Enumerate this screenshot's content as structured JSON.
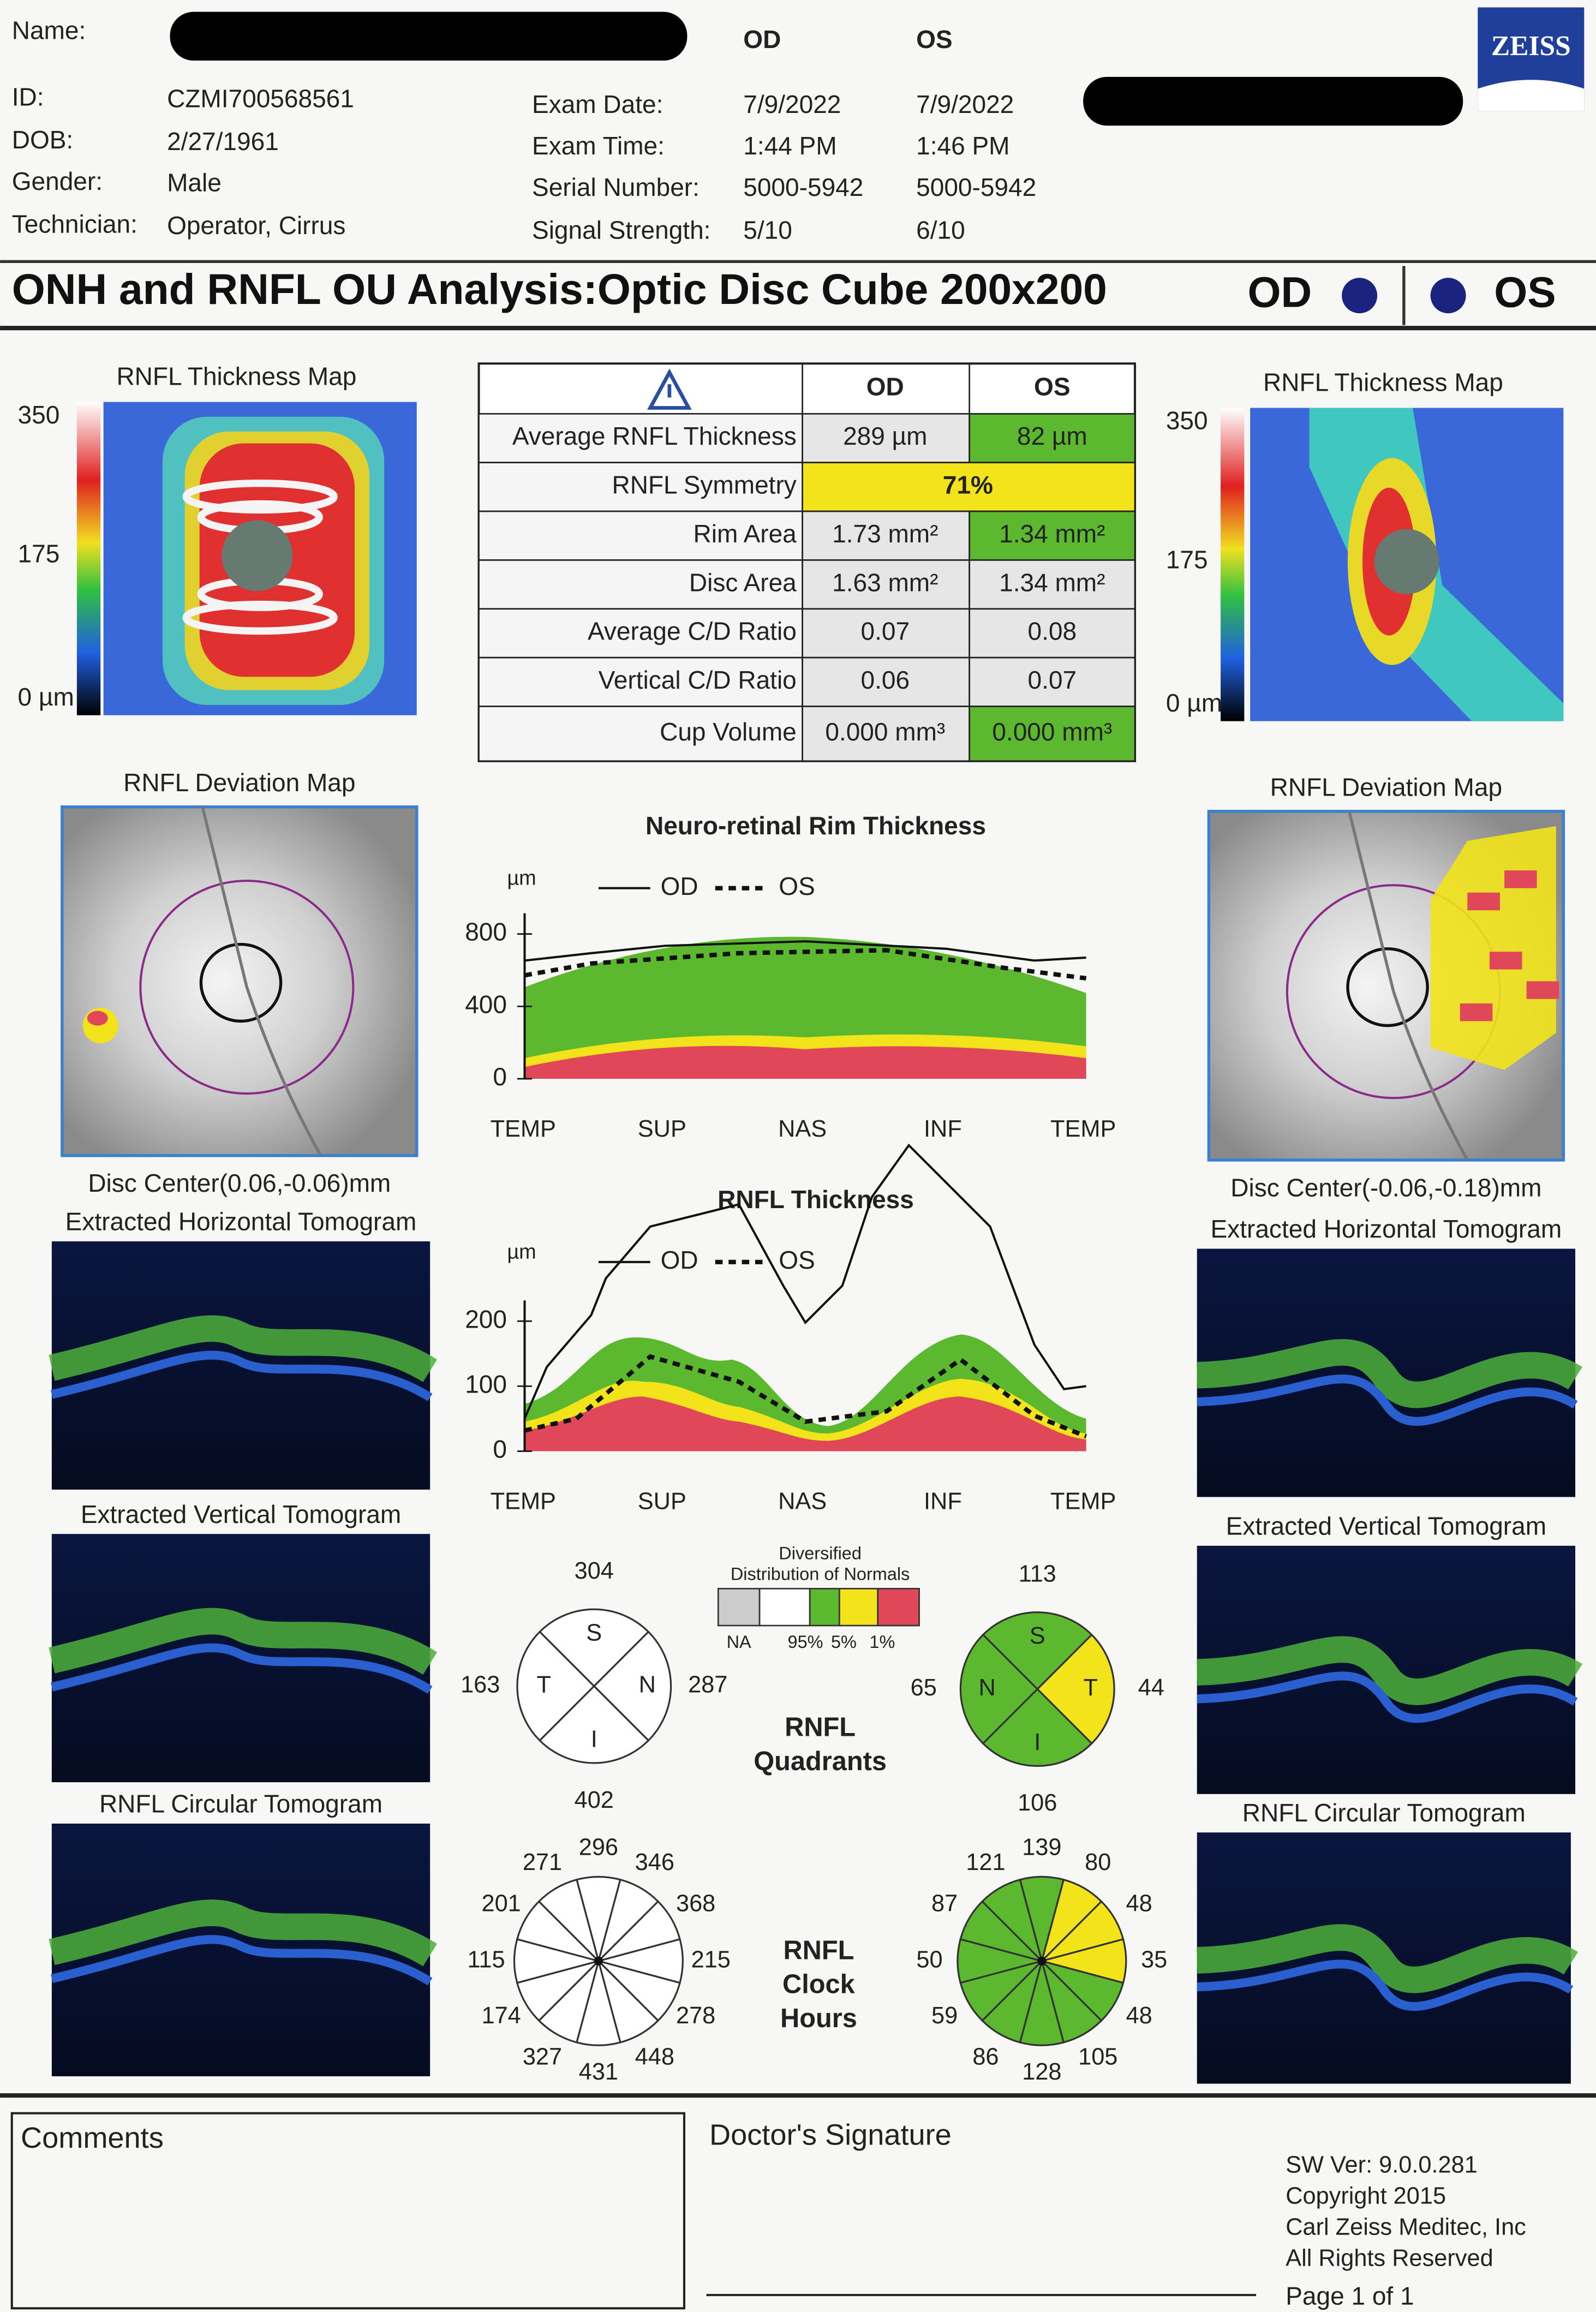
{
  "header": {
    "name_label": "Name:",
    "id_label": "ID:",
    "id": "CZMI700568561",
    "dob_label": "DOB:",
    "dob": "2/27/1961",
    "gender_label": "Gender:",
    "gender": "Male",
    "technician_label": "Technician:",
    "technician": "Operator, Cirrus",
    "eyes": [
      "OD",
      "OS"
    ],
    "exam_rows": [
      [
        "Exam Date:",
        "7/9/2022",
        "7/9/2022"
      ],
      [
        "Exam Time:",
        "1:44 PM",
        "1:46 PM"
      ],
      [
        "Serial Number:",
        "5000-5942",
        "5000-5942"
      ],
      [
        "Signal Strength:",
        "5/10",
        "6/10"
      ]
    ],
    "logo": "ZEISS"
  },
  "title": {
    "text": "ONH and RNFL OU Analysis:Optic Disc Cube 200x200",
    "od": "OD",
    "os": "OS"
  },
  "thickness_maps": {
    "od": {
      "title": "RNFL Thickness Map",
      "scale": [
        "350",
        "175",
        "0 µm"
      ]
    },
    "os": {
      "title": "RNFL Thickness Map",
      "scale": [
        "350",
        "175",
        "0 µm"
      ]
    }
  },
  "table": {
    "header": [
      "OD",
      "OS"
    ],
    "rows": [
      [
        "Average RNFL Thickness",
        "289 µm",
        "82 µm"
      ],
      [
        "RNFL Symmetry",
        "71%"
      ],
      [
        "Rim Area",
        "1.73 mm²",
        "1.34 mm²"
      ],
      [
        "Disc Area",
        "1.63 mm²",
        "1.34 mm²"
      ],
      [
        "Average C/D Ratio",
        "0.07",
        "0.08"
      ],
      [
        "Vertical C/D Ratio",
        "0.06",
        "0.07"
      ],
      [
        "Cup Volume",
        "0.000 mm³",
        "0.000 mm³"
      ]
    ]
  },
  "deviation_maps": {
    "od": {
      "title": "RNFL Deviation Map",
      "disc_center": "Disc Center(0.06,-0.06)mm"
    },
    "os": {
      "title": "RNFL Deviation Map",
      "disc_center": "Disc Center(-0.06,-0.18)mm"
    }
  },
  "tomograms": {
    "od": [
      "Extracted Horizontal Tomogram",
      "Extracted Vertical Tomogram",
      "RNFL Circular Tomogram"
    ],
    "os": [
      "Extracted Horizontal Tomogram",
      "Extracted Vertical Tomogram",
      "RNFL Circular Tomogram"
    ]
  },
  "rim_chart": {
    "title": "Neuro-retinal Rim Thickness",
    "unit": "µm",
    "legend": [
      "OD",
      "OS"
    ],
    "yticks": [
      800,
      400,
      0
    ],
    "xlabels": [
      "TEMP",
      "SUP",
      "NAS",
      "INF",
      "TEMP"
    ]
  },
  "rnfl_chart": {
    "title": "RNFL Thickness",
    "unit": "µm",
    "legend": [
      "OD",
      "OS"
    ],
    "yticks": [
      200,
      100,
      0
    ],
    "xlabels": [
      "TEMP",
      "SUP",
      "NAS",
      "INF",
      "TEMP"
    ]
  },
  "normals_legend": {
    "title": [
      "Diversified",
      "Distribution of Normals"
    ],
    "labels": [
      "NA",
      "95%",
      "5%",
      "1%"
    ]
  },
  "quadrants": {
    "label": [
      "RNFL",
      "Quadrants"
    ],
    "od": [
      {
        "letter": "S",
        "value": 304
      },
      {
        "letter": "T",
        "value": 163
      },
      {
        "letter": "N",
        "value": 287
      },
      {
        "letter": "I",
        "value": 402
      }
    ],
    "os": [
      {
        "letter": "S",
        "value": 113
      },
      {
        "letter": "N",
        "value": 65
      },
      {
        "letter": "T",
        "value": 44
      },
      {
        "letter": "I",
        "value": 106
      }
    ]
  },
  "clock_hours": {
    "label": [
      "RNFL",
      "Clock",
      "Hours"
    ],
    "od": [
      296,
      346,
      368,
      215,
      278,
      448,
      431,
      327,
      174,
      115,
      201,
      271
    ],
    "os": [
      139,
      80,
      48,
      35,
      48,
      105,
      128,
      86,
      59,
      50,
      87,
      121
    ]
  },
  "footer": {
    "comments": "Comments",
    "signature": "Doctor's Signature",
    "software": [
      "SW Ver: 9.0.0.281",
      "Copyright 2015",
      "Carl Zeiss Meditec, Inc",
      "All Rights Reserved"
    ],
    "page": "Page 1 of 1"
  }
}
